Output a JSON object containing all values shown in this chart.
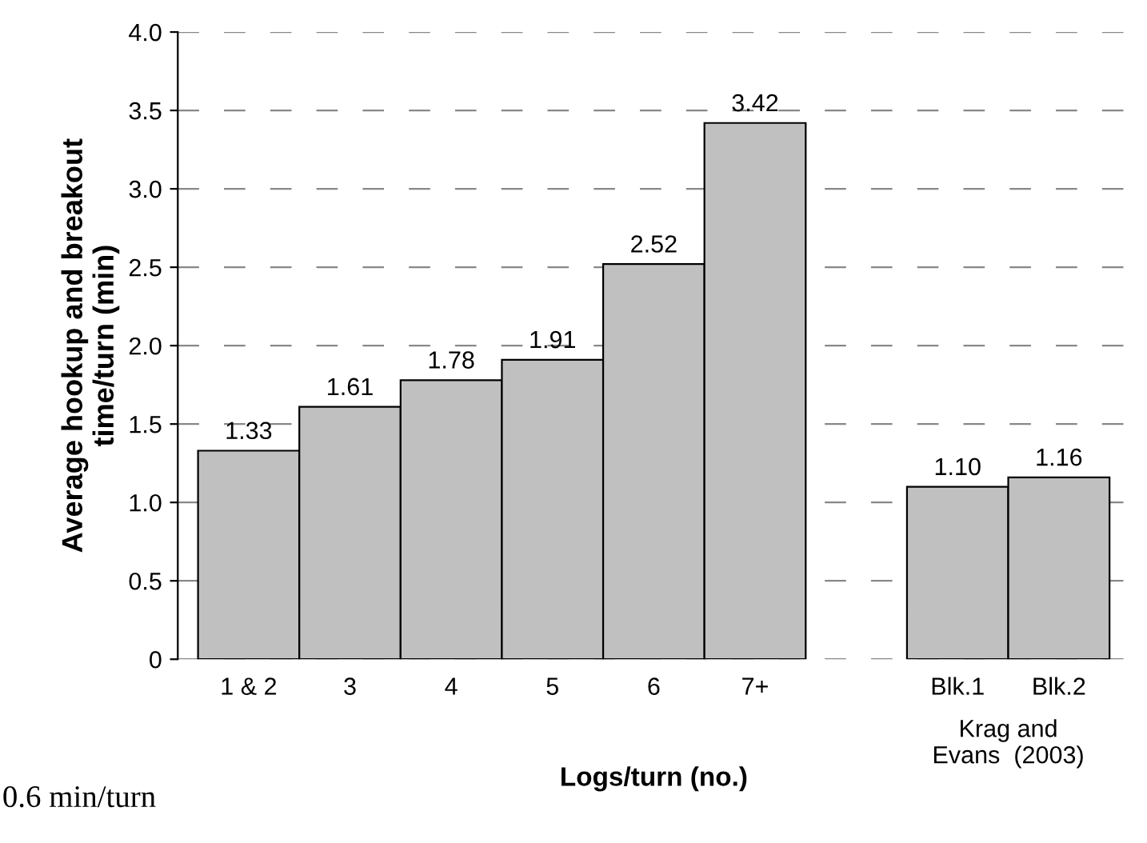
{
  "chart_data": {
    "type": "bar",
    "xlabel": "Logs/turn (no.)",
    "ylabel": "Average hookup and breakout\ntime/turn (min)",
    "categories": [
      "1 & 2",
      "3",
      "4",
      "5",
      "6",
      "7+",
      null,
      "Blk.1",
      "Blk.2"
    ],
    "values": [
      1.33,
      1.61,
      1.78,
      1.91,
      2.52,
      3.42,
      null,
      1.1,
      1.16
    ],
    "value_labels": [
      "1.33",
      "1.61",
      "1.78",
      "1.91",
      "2.52",
      "3.42",
      null,
      "1.10",
      "1.16"
    ],
    "color": "#c0c0c0",
    "ylim": [
      0,
      4.0
    ],
    "yticks": [
      0,
      0.5,
      {
        "value": 1.0,
        "label": "1.0"
      },
      1.5,
      {
        "value": 2.0,
        "label": "2.0"
      },
      2.5,
      {
        "value": 3.0,
        "label": "3.0"
      },
      3.5,
      {
        "value": 4.0,
        "label": "4.0"
      }
    ],
    "grid": "y",
    "annotations": [
      "Krag and\nEvans  (2003)",
      "0.6 min/turn"
    ]
  }
}
